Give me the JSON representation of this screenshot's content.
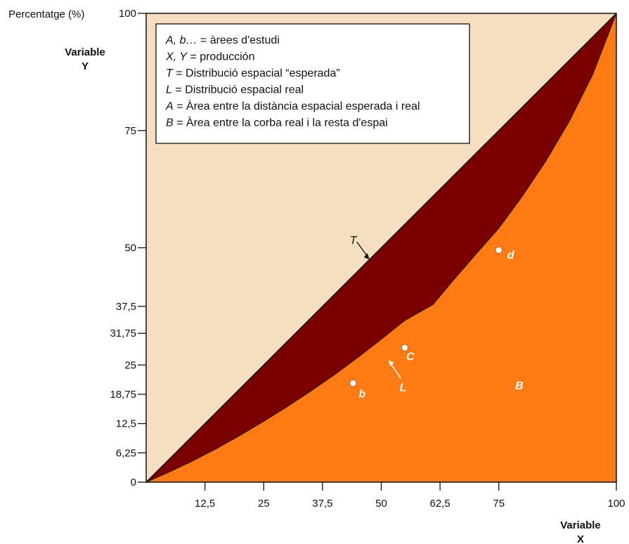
{
  "chart_data": {
    "type": "area",
    "ylabel_top": "Percentatge (%)",
    "xlabel": [
      "Variable",
      "X"
    ],
    "ylabel": [
      "Variable",
      "Y"
    ],
    "xlim": [
      0,
      100
    ],
    "ylim": [
      0,
      100
    ],
    "x_ticks": [
      {
        "value": 12.5,
        "label": "12,5"
      },
      {
        "value": 25,
        "label": "25"
      },
      {
        "value": 37.5,
        "label": "37,5"
      },
      {
        "value": 50,
        "label": "50"
      },
      {
        "value": 62.5,
        "label": "62,5"
      },
      {
        "value": 75,
        "label": "75"
      },
      {
        "value": 100,
        "label": "100"
      }
    ],
    "y_ticks": [
      {
        "value": 0,
        "label": "0"
      },
      {
        "value": 6.25,
        "label": "6,25"
      },
      {
        "value": 12.5,
        "label": "12,5"
      },
      {
        "value": 18.75,
        "label": "18,75"
      },
      {
        "value": 25,
        "label": "25"
      },
      {
        "value": 31.75,
        "label": "31,75"
      },
      {
        "value": 37.5,
        "label": "37,5"
      },
      {
        "value": 50,
        "label": "50"
      },
      {
        "value": 75,
        "label": "75"
      },
      {
        "value": 100,
        "label": "100"
      }
    ],
    "series": [
      {
        "name": "T",
        "x": [
          0,
          100
        ],
        "y": [
          0,
          100
        ]
      },
      {
        "name": "L",
        "x": [
          0,
          5,
          10,
          15,
          20,
          25,
          30,
          35,
          40,
          45,
          50,
          55,
          61,
          65,
          70,
          75,
          80,
          85,
          90,
          95,
          100
        ],
        "y": [
          0,
          2.2,
          4.6,
          7.2,
          10,
          13,
          16.1,
          19.4,
          22.9,
          26.6,
          30.5,
          34.5,
          37.9,
          42.7,
          48.5,
          54.2,
          61,
          68.5,
          77,
          87,
          100
        ]
      }
    ],
    "points": [
      {
        "label": "b",
        "x": 44,
        "y": 21.1
      },
      {
        "label": "C",
        "x": 55,
        "y": 28.7
      },
      {
        "label": "d",
        "x": 75,
        "y": 49.5
      }
    ],
    "annotations": {
      "T": {
        "label": "T",
        "x": 47.5,
        "y": 47.5
      },
      "L": {
        "label": "L",
        "x": 51.5,
        "y": 26
      },
      "B": {
        "label": "B"
      }
    },
    "legend": {
      "placement": "top-left",
      "lines": [
        {
          "italic": "A, b…",
          "text": " = àrees d'estudi"
        },
        {
          "italic": "X, Y",
          "text": " = producción"
        },
        {
          "italic": "T",
          "text": " = Distribució espacial “esperada”"
        },
        {
          "italic": "L",
          "text": " = Distribució espacial real"
        },
        {
          "italic": "A",
          "text": " = Àrea entre la distància espacial esperada i real"
        },
        {
          "italic": "B",
          "text": " = Àrea entre la corba real i la resta d'espai"
        }
      ]
    },
    "colors": {
      "background": "#f5dfc0",
      "area_A": "#7a0000",
      "area_B": "#ff7a12",
      "outline": "#111111",
      "point": "#ffffff"
    }
  }
}
